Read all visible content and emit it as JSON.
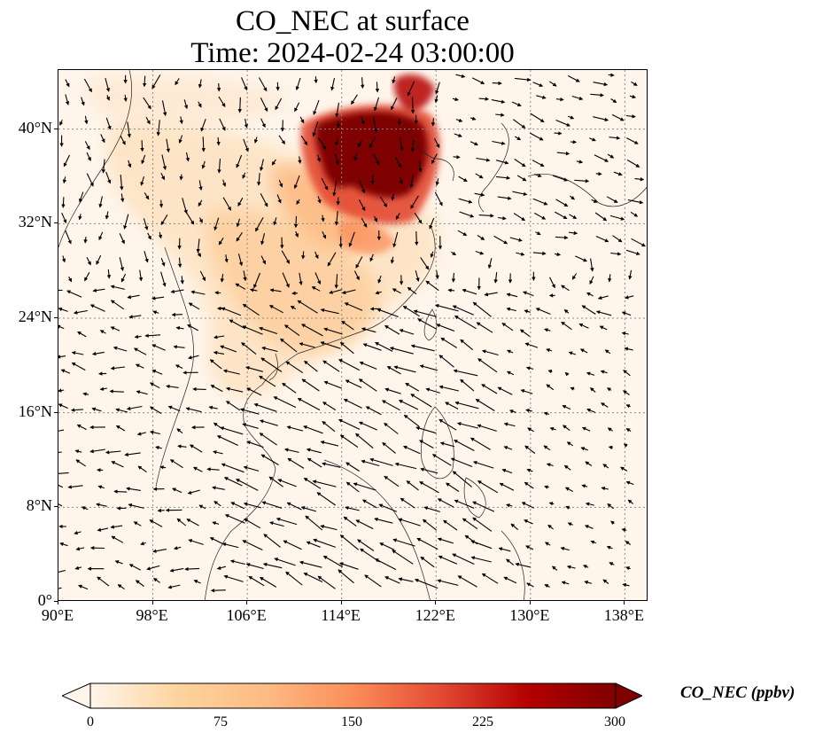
{
  "title_line1": "CO_NEC at surface",
  "title_line2": "Time: 2024-02-24 03:00:00",
  "map": {
    "lon_range": [
      90,
      140
    ],
    "lat_range": [
      0,
      45
    ],
    "lon_ticks": [
      "90°E",
      "98°E",
      "106°E",
      "114°E",
      "122°E",
      "130°E",
      "138°E"
    ],
    "lat_ticks": [
      "0°",
      "8°N",
      "16°N",
      "24°N",
      "32°N",
      "40°N"
    ],
    "gridlines": true,
    "colormap": "OrRd",
    "vector_field": "surface wind arrows"
  },
  "colorbar": {
    "label": "CO_NEC (ppbv)",
    "ticks": [
      "0",
      "75",
      "150",
      "225",
      "300"
    ],
    "min": 0,
    "max": 300,
    "extend": "both",
    "colors": [
      "#fff5eb",
      "#fdd49e",
      "#fdbb84",
      "#fc8d59",
      "#e34a33",
      "#b30000",
      "#7f0000"
    ]
  }
}
